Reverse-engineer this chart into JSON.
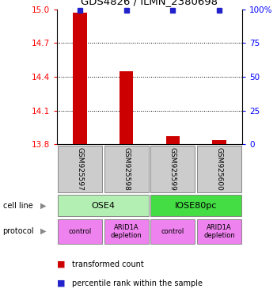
{
  "title": "GDS4826 / ILMN_2380698",
  "samples": [
    "GSM925597",
    "GSM925598",
    "GSM925599",
    "GSM925600"
  ],
  "red_values": [
    14.97,
    14.45,
    13.87,
    13.835
  ],
  "blue_values": [
    99,
    99,
    99,
    99
  ],
  "ylim_left": [
    13.8,
    15.0
  ],
  "ylim_right": [
    0,
    100
  ],
  "yticks_left": [
    13.8,
    14.1,
    14.4,
    14.7,
    15.0
  ],
  "yticks_right": [
    0,
    25,
    50,
    75,
    100
  ],
  "ytick_labels_right": [
    "0",
    "25",
    "50",
    "75",
    "100%"
  ],
  "dotted_lines": [
    14.1,
    14.4,
    14.7
  ],
  "cell_line_labels": [
    "OSE4",
    "IOSE80pc"
  ],
  "cell_line_spans": [
    [
      0,
      1
    ],
    [
      2,
      3
    ]
  ],
  "cell_line_colors": [
    "#b3efb3",
    "#44dd44"
  ],
  "protocol_labels": [
    "control",
    "ARID1A\ndepletion",
    "control",
    "ARID1A\ndepletion"
  ],
  "protocol_color": "#ee82ee",
  "sample_box_color": "#cccccc",
  "bar_color": "#cc0000",
  "dot_color": "#2222cc",
  "legend_red": "transformed count",
  "legend_blue": "percentile rank within the sample",
  "cell_line_label": "cell line",
  "protocol_label": "protocol",
  "fig_width": 3.5,
  "fig_height": 3.84,
  "dpi": 100
}
